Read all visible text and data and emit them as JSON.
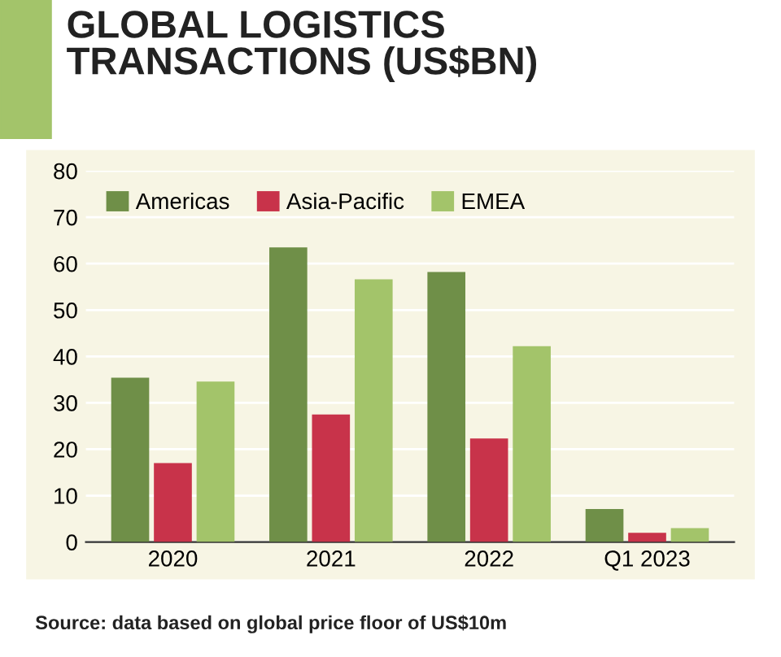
{
  "chart_data": {
    "type": "bar",
    "title": "GLOBAL LOGISTICS\nTRANSACTIONS (US$BN)",
    "categories": [
      "2020",
      "2021",
      "2022",
      "Q1 2023"
    ],
    "series": [
      {
        "name": "Americas",
        "color": "#6f8f48",
        "values": [
          35.4,
          63.5,
          58.2,
          7.1
        ]
      },
      {
        "name": "Asia-Pacific",
        "color": "#c8334a",
        "values": [
          17,
          27.5,
          22.3,
          2
        ]
      },
      {
        "name": "EMEA",
        "color": "#a3c46a",
        "values": [
          34.6,
          56.6,
          42.2,
          3
        ]
      }
    ],
    "ylim": [
      0,
      80
    ],
    "yticks": [
      0,
      10,
      20,
      30,
      40,
      50,
      60,
      70,
      80
    ],
    "grid": "y",
    "legend": "top left",
    "annotations": [
      "Source: data based on global price floor of US$10m"
    ]
  }
}
